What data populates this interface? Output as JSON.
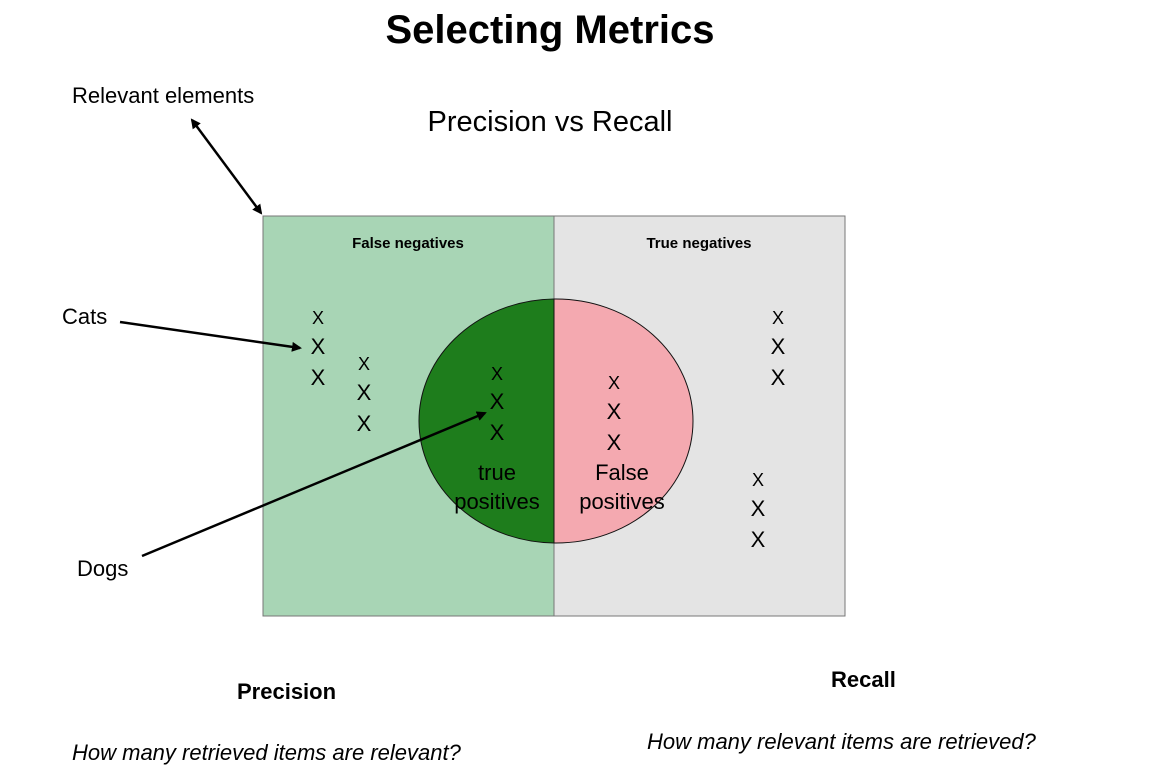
{
  "title": "Selecting Metrics",
  "subtitle": "Precision vs Recall",
  "diagram": {
    "relevant_elements_label": "Relevant elements",
    "cats_label": "Cats",
    "dogs_label": "Dogs",
    "false_negatives_label": "False negatives",
    "true_negatives_label": "True negatives",
    "true_positives_label": [
      "true",
      "positives"
    ],
    "false_positives_label": [
      "False",
      "positives"
    ],
    "mark_symbol": "X",
    "colors": {
      "relevant_region": "#a8d5b5",
      "nonrelevant_region": "#e4e4e4",
      "true_positive": "#1e7d1c",
      "false_positive": "#f4a9b0"
    }
  },
  "precision": {
    "label": "Precision",
    "question": "How many retrieved items are relevant?"
  },
  "recall": {
    "label": "Recall",
    "question": "How many relevant items are retrieved?"
  }
}
